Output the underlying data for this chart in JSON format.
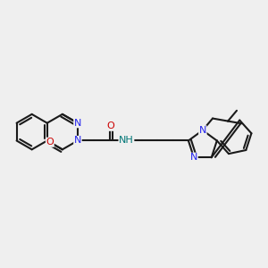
{
  "bg": "#efefef",
  "bc": "#1a1a1a",
  "Nc": "#2222ee",
  "Oc": "#cc0000",
  "NHc": "#007777",
  "lw": 1.5,
  "fs": 8.0,
  "xlim": [
    0,
    14
  ],
  "ylim": [
    0,
    9
  ],
  "figsize": [
    3.0,
    3.0
  ],
  "dpi": 100
}
